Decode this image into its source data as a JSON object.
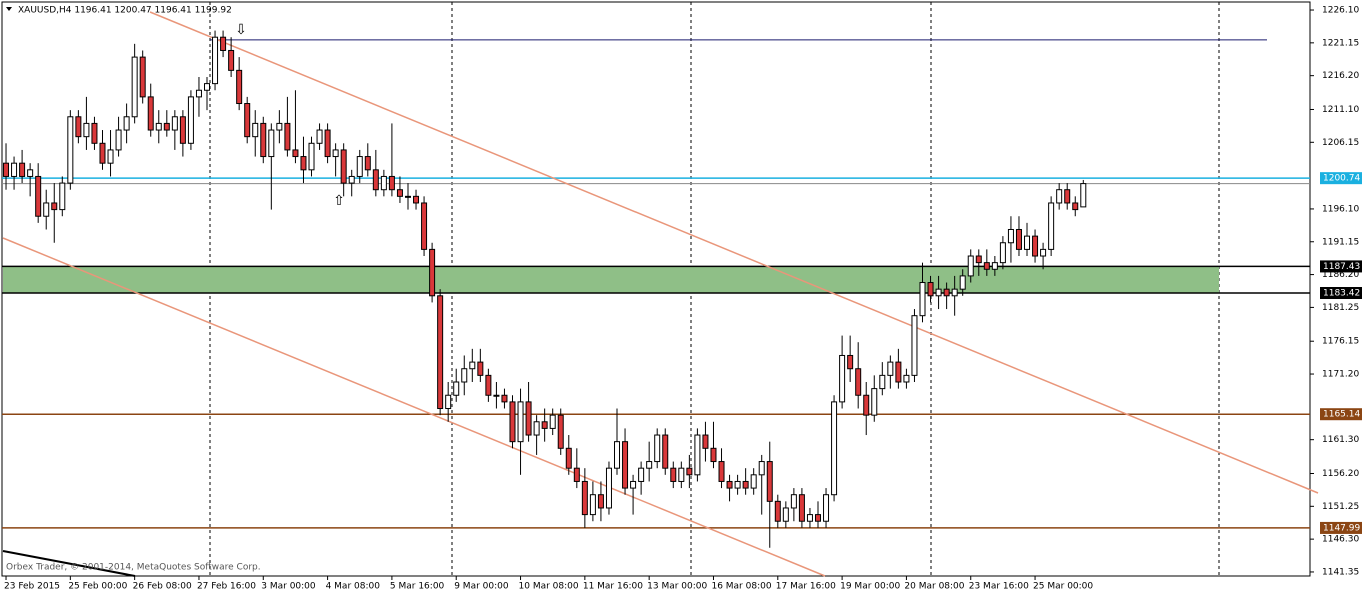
{
  "chart_data": {
    "type": "candlestick",
    "header": "XAUUSD,H4  1196.41 1200.47 1196.41 1199.92",
    "watermark": "Orbex Trader, © 2001-2014, MetaQuotes Software Corp.",
    "up_color": "#ffffff",
    "down_color": "#d9383a",
    "open": [
      1203,
      1201,
      1203,
      1201,
      1201,
      1195,
      1197,
      1196,
      1200,
      1210,
      1207,
      1209,
      1206,
      1203,
      1205,
      1208,
      1210,
      1219,
      1213,
      1208,
      1209,
      1208,
      1210,
      1206,
      1213,
      1214,
      1215,
      1222,
      1220,
      1217,
      1212,
      1207,
      1209,
      1204,
      1208,
      1209,
      1205,
      1204,
      1202,
      1206,
      1208,
      1204,
      1205,
      1200,
      1201,
      1204,
      1202,
      1199,
      1201,
      1199,
      1198,
      1198,
      1197,
      1190,
      1183,
      1166,
      1168,
      1170,
      1172,
      1173,
      1171,
      1168,
      1168,
      1167,
      1161,
      1167,
      1162,
      1164,
      1163,
      1165,
      1160,
      1157,
      1155,
      1150,
      1153,
      1151,
      1157,
      1161,
      1154,
      1155,
      1157,
      1158,
      1162,
      1157,
      1155,
      1157,
      1156,
      1162,
      1160,
      1158,
      1155,
      1154,
      1155,
      1154,
      1156,
      1158,
      1152,
      1149,
      1151,
      1153,
      1149,
      1150,
      1149,
      1153,
      1167,
      1174,
      1172,
      1168,
      1165,
      1169,
      1171,
      1173,
      1170,
      1171,
      1180,
      1185,
      1183,
      1184,
      1183,
      1184,
      1186,
      1189,
      1188,
      1187,
      1188,
      1191,
      1193,
      1190,
      1192,
      1189,
      1190,
      1197,
      1199,
      1197,
      1196.41
    ],
    "high": [
      1206,
      1204,
      1205,
      1203,
      1203,
      1199,
      1200,
      1201,
      1211,
      1211,
      1213,
      1210,
      1208,
      1208,
      1210,
      1212,
      1221,
      1220,
      1215,
      1211,
      1211,
      1211,
      1211,
      1214,
      1216,
      1216,
      1223,
      1223,
      1222,
      1219,
      1213,
      1211,
      1210,
      1209,
      1211,
      1213,
      1214,
      1207,
      1207,
      1209,
      1209,
      1206,
      1206,
      1202,
      1205,
      1206,
      1205,
      1202,
      1209,
      1201,
      1200,
      1199,
      1198,
      1191,
      1184,
      1170,
      1172,
      1174,
      1175,
      1175,
      1172,
      1170,
      1169,
      1168,
      1169,
      1170,
      1165,
      1166,
      1166,
      1166,
      1162,
      1160,
      1157,
      1155,
      1155,
      1158,
      1166,
      1163,
      1156,
      1158,
      1161,
      1163,
      1163,
      1158,
      1158,
      1159,
      1163,
      1164,
      1164,
      1160,
      1156,
      1156,
      1157,
      1157,
      1159,
      1161,
      1153,
      1152,
      1154,
      1154,
      1151,
      1152,
      1154,
      1168,
      1177,
      1177,
      1176,
      1170,
      1171,
      1173,
      1174,
      1175,
      1172,
      1181,
      1188,
      1186,
      1186,
      1185,
      1186,
      1187,
      1190,
      1190,
      1190,
      1189,
      1192,
      1195,
      1195,
      1194,
      1193,
      1191,
      1198,
      1200,
      1200,
      1198,
      1200.47
    ],
    "low": [
      1199,
      1199,
      1200,
      1198,
      1194,
      1193,
      1191,
      1195,
      1199,
      1206,
      1205,
      1205,
      1202,
      1201,
      1204,
      1206,
      1209,
      1212,
      1207,
      1206,
      1207,
      1205,
      1204,
      1205,
      1210,
      1211,
      1214,
      1219,
      1216,
      1211,
      1206,
      1204,
      1203,
      1196,
      1206,
      1204,
      1203,
      1200,
      1201,
      1205,
      1203,
      1201,
      1198,
      1198,
      1200,
      1201,
      1198,
      1198,
      1198,
      1197,
      1196,
      1196,
      1189,
      1182,
      1165,
      1164,
      1167,
      1168,
      1170,
      1170,
      1167,
      1166,
      1166,
      1160,
      1156,
      1161,
      1159,
      1161,
      1162,
      1159,
      1156,
      1154,
      1148,
      1149,
      1149,
      1150,
      1156,
      1153,
      1150,
      1153,
      1155,
      1157,
      1156,
      1154,
      1154,
      1154,
      1155,
      1158,
      1157,
      1154,
      1152,
      1153,
      1153,
      1153,
      1150,
      1145,
      1148,
      1148,
      1149,
      1148,
      1148,
      1148,
      1148,
      1152,
      1166,
      1170,
      1166,
      1162,
      1164,
      1168,
      1169,
      1169,
      1169,
      1170,
      1179,
      1182,
      1181,
      1181,
      1180,
      1183,
      1185,
      1186,
      1186,
      1186,
      1187,
      1188,
      1189,
      1189,
      1188,
      1187,
      1189,
      1196,
      1196,
      1195,
      1196.41
    ],
    "close": [
      1201,
      1203,
      1201,
      1202,
      1195,
      1197,
      1196,
      1200,
      1210,
      1207,
      1209,
      1206,
      1203,
      1205,
      1208,
      1210,
      1219,
      1213,
      1208,
      1209,
      1208,
      1210,
      1206,
      1213,
      1214,
      1215,
      1222,
      1220,
      1217,
      1212,
      1207,
      1209,
      1204,
      1208,
      1209,
      1205,
      1204,
      1202,
      1206,
      1208,
      1204,
      1205,
      1200,
      1201,
      1204,
      1202,
      1199,
      1201,
      1199,
      1198,
      1198,
      1197,
      1190,
      1183,
      1166,
      1168,
      1170,
      1172,
      1173,
      1171,
      1168,
      1168,
      1167,
      1161,
      1167,
      1162,
      1164,
      1163,
      1165,
      1160,
      1157,
      1155,
      1150,
      1153,
      1151,
      1157,
      1161,
      1154,
      1155,
      1157,
      1158,
      1162,
      1157,
      1155,
      1157,
      1156,
      1162,
      1160,
      1158,
      1155,
      1154,
      1155,
      1154,
      1156,
      1158,
      1152,
      1149,
      1151,
      1153,
      1149,
      1150,
      1149,
      1153,
      1167,
      1174,
      1172,
      1168,
      1165,
      1169,
      1171,
      1173,
      1170,
      1171,
      1180,
      1185,
      1183,
      1184,
      1183,
      1184,
      1186,
      1189,
      1188,
      1187,
      1188,
      1191,
      1193,
      1190,
      1192,
      1189,
      1190,
      1197,
      1199,
      1197,
      1196,
      1199.92
    ],
    "xlim": [
      -0.5,
      162.2
    ],
    "xticks": [
      {
        "value": 0,
        "label": "23 Feb 2015"
      },
      {
        "value": 8,
        "label": "25 Feb 00:00"
      },
      {
        "value": 16,
        "label": "26 Feb 08:00"
      },
      {
        "value": 24,
        "label": "27 Feb 16:00"
      },
      {
        "value": 32,
        "label": "3 Mar 00:00"
      },
      {
        "value": 40,
        "label": "4 Mar 08:00"
      },
      {
        "value": 48,
        "label": "5 Mar 16:00"
      },
      {
        "value": 56,
        "label": "9 Mar 00:00"
      },
      {
        "value": 64,
        "label": "10 Mar 08:00"
      },
      {
        "value": 72,
        "label": "11 Mar 16:00"
      },
      {
        "value": 80,
        "label": "13 Mar 00:00"
      },
      {
        "value": 88,
        "label": "16 Mar 08:00"
      },
      {
        "value": 96,
        "label": "17 Mar 16:00"
      },
      {
        "value": 104,
        "label": "19 Mar 00:00"
      },
      {
        "value": 112,
        "label": "20 Mar 08:00"
      },
      {
        "value": 120,
        "label": "23 Mar 16:00"
      },
      {
        "value": 128,
        "label": "25 Mar 00:00"
      }
    ],
    "ylim": [
      1140.74,
      1227.31
    ],
    "yticks": [
      {
        "value": 1226.1,
        "label": "1226.10"
      },
      1221.15,
      {
        "value": 1216.2,
        "label": "1216.20"
      },
      {
        "value": 1211.1,
        "label": "1211.10"
      },
      1206.15,
      {
        "value": 1196.1,
        "label": "1196.10"
      },
      1191.15,
      {
        "value": 1186.2,
        "label": "1186.20"
      },
      1181.25,
      1176.15,
      {
        "value": 1171.2,
        "label": "1171.20"
      },
      {
        "value": 1161.3,
        "label": "1161.30"
      },
      {
        "value": 1156.2,
        "label": "1156.20"
      },
      1151.25,
      {
        "value": 1146.3,
        "label": "1146.30"
      },
      1141.35
    ],
    "resistance": {
      "value": 1221.6,
      "color": "#1a1a6e"
    },
    "levels": [
      {
        "value": 1200.74,
        "color": "#1ab0e0"
      },
      {
        "value": 1187.43,
        "color": "#000000"
      },
      {
        "value": 1183.42,
        "color": "#000000"
      },
      {
        "value": 1165.14,
        "color": "#8b4513"
      },
      {
        "value": 1147.99,
        "color": "#8b4513"
      }
    ],
    "zone_color": "#8fbf87"
  }
}
